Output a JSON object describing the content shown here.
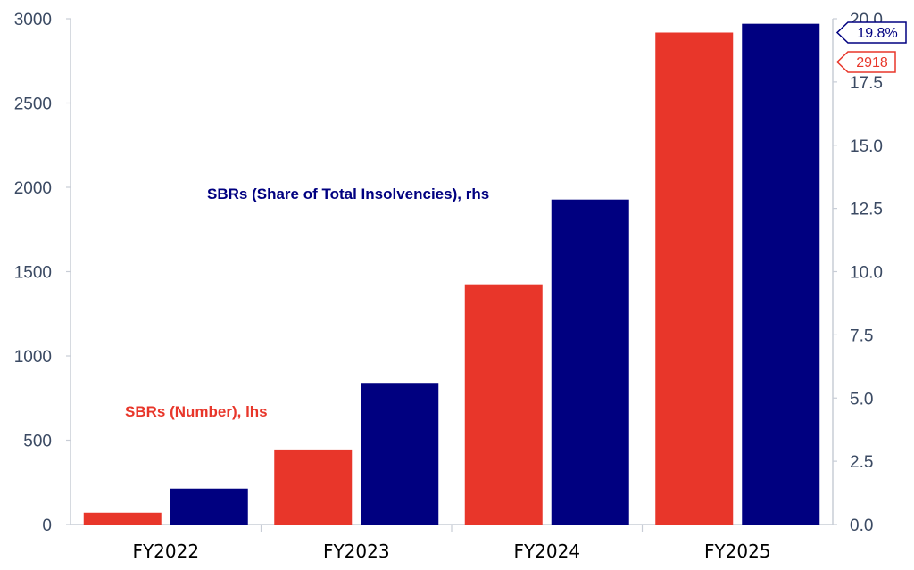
{
  "chart_data": {
    "type": "bar",
    "categories": [
      "FY2022",
      "FY2023",
      "FY2024",
      "FY2025"
    ],
    "series": [
      {
        "name": "SBRs (Number), lhs",
        "axis": "left",
        "color": "#e8362a",
        "values": [
          70,
          445,
          1425,
          2918
        ]
      },
      {
        "name": "SBRs (Share of Total Insolvencies), rhs",
        "axis": "right",
        "color": "#000080",
        "values": [
          1.42,
          5.6,
          12.85,
          19.8
        ]
      }
    ],
    "left_axis": {
      "ylim": [
        0,
        3000
      ],
      "ticks": [
        "0",
        "500",
        "1000",
        "1500",
        "2000",
        "2500",
        "3000"
      ]
    },
    "right_axis": {
      "ylim": [
        0,
        20
      ],
      "ticks": [
        "0.0",
        "2.5",
        "5.0",
        "7.5",
        "10.0",
        "12.5",
        "15.0",
        "17.5",
        "20.0"
      ]
    },
    "annotations": {
      "left_series_label": "SBRs (Number), lhs",
      "right_series_label": "SBRs (Share of Total Insolvencies), rhs"
    },
    "callouts": {
      "right_last": "19.8%",
      "left_last": "2918"
    },
    "grid": false,
    "legend": "none"
  }
}
